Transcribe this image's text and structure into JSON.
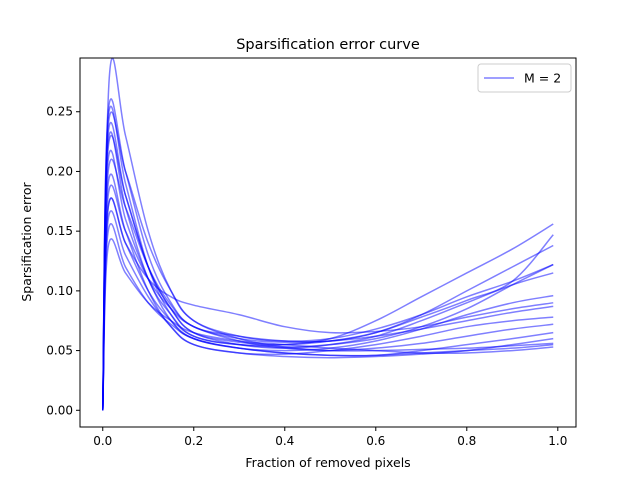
{
  "chart_data": {
    "type": "line",
    "title": "Sparsification error curve",
    "xlabel": "Fraction of removed pixels",
    "ylabel": "Sparsification error",
    "xlim": [
      -0.05,
      1.04
    ],
    "ylim": [
      -0.014,
      0.295
    ],
    "xticks": [
      0.0,
      0.2,
      0.4,
      0.6,
      0.8,
      1.0
    ],
    "xtick_labels": [
      "0.0",
      "0.2",
      "0.4",
      "0.6",
      "0.8",
      "1.0"
    ],
    "yticks": [
      0.0,
      0.05,
      0.1,
      0.15,
      0.2,
      0.25
    ],
    "ytick_labels": [
      "0.00",
      "0.05",
      "0.10",
      "0.15",
      "0.20",
      "0.25"
    ],
    "grid": false,
    "legend": {
      "position": "top-right",
      "entries": [
        "M = 2"
      ]
    },
    "series_color": "#0000ff",
    "series_alpha": 0.5,
    "series": [
      {
        "x": [
          0,
          0.015,
          0.05,
          0.1,
          0.15,
          0.2,
          0.3,
          0.4,
          0.5,
          0.6,
          0.7,
          0.8,
          0.9,
          0.99
        ],
        "y": [
          0,
          0.282,
          0.23,
          0.15,
          0.1,
          0.075,
          0.06,
          0.053,
          0.05,
          0.05,
          0.051,
          0.052,
          0.054,
          0.056
        ]
      },
      {
        "x": [
          0,
          0.012,
          0.05,
          0.1,
          0.15,
          0.2,
          0.3,
          0.4,
          0.5,
          0.6,
          0.7,
          0.8,
          0.9,
          0.99
        ],
        "y": [
          0,
          0.25,
          0.2,
          0.13,
          0.09,
          0.07,
          0.062,
          0.058,
          0.058,
          0.065,
          0.08,
          0.1,
          0.12,
          0.138
        ]
      },
      {
        "x": [
          0,
          0.012,
          0.05,
          0.1,
          0.15,
          0.2,
          0.3,
          0.4,
          0.5,
          0.6,
          0.7,
          0.8,
          0.9,
          0.99
        ],
        "y": [
          0,
          0.245,
          0.19,
          0.12,
          0.08,
          0.062,
          0.055,
          0.055,
          0.06,
          0.075,
          0.095,
          0.115,
          0.135,
          0.156
        ]
      },
      {
        "x": [
          0,
          0.012,
          0.05,
          0.1,
          0.15,
          0.2,
          0.3,
          0.4,
          0.5,
          0.6,
          0.7,
          0.8,
          0.9,
          0.99
        ],
        "y": [
          0,
          0.238,
          0.2,
          0.14,
          0.1,
          0.075,
          0.062,
          0.058,
          0.06,
          0.068,
          0.08,
          0.095,
          0.108,
          0.122
        ]
      },
      {
        "x": [
          0,
          0.012,
          0.05,
          0.1,
          0.15,
          0.2,
          0.3,
          0.4,
          0.5,
          0.6,
          0.7,
          0.8,
          0.9,
          0.99
        ],
        "y": [
          0,
          0.232,
          0.18,
          0.12,
          0.085,
          0.065,
          0.055,
          0.052,
          0.055,
          0.062,
          0.075,
          0.09,
          0.105,
          0.115
        ]
      },
      {
        "x": [
          0,
          0.012,
          0.05,
          0.1,
          0.15,
          0.2,
          0.3,
          0.4,
          0.5,
          0.6,
          0.7,
          0.8,
          0.9,
          0.99
        ],
        "y": [
          0,
          0.225,
          0.17,
          0.11,
          0.08,
          0.062,
          0.055,
          0.053,
          0.055,
          0.06,
          0.07,
          0.085,
          0.105,
          0.122
        ]
      },
      {
        "x": [
          0,
          0.012,
          0.05,
          0.1,
          0.15,
          0.2,
          0.3,
          0.4,
          0.5,
          0.6,
          0.7,
          0.8,
          0.9,
          0.99
        ],
        "y": [
          0,
          0.22,
          0.18,
          0.12,
          0.085,
          0.065,
          0.057,
          0.055,
          0.058,
          0.065,
          0.078,
          0.092,
          0.108,
          0.147
        ]
      },
      {
        "x": [
          0,
          0.012,
          0.05,
          0.1,
          0.15,
          0.2,
          0.3,
          0.4,
          0.5,
          0.6,
          0.7,
          0.8,
          0.9,
          0.99
        ],
        "y": [
          0,
          0.21,
          0.16,
          0.11,
          0.075,
          0.06,
          0.052,
          0.05,
          0.052,
          0.058,
          0.068,
          0.08,
          0.09,
          0.096
        ]
      },
      {
        "x": [
          0,
          0.012,
          0.05,
          0.1,
          0.15,
          0.2,
          0.3,
          0.4,
          0.5,
          0.6,
          0.7,
          0.8,
          0.9,
          0.99
        ],
        "y": [
          0,
          0.2,
          0.17,
          0.12,
          0.088,
          0.07,
          0.06,
          0.057,
          0.058,
          0.062,
          0.068,
          0.075,
          0.082,
          0.087
        ]
      },
      {
        "x": [
          0,
          0.012,
          0.05,
          0.1,
          0.15,
          0.2,
          0.3,
          0.4,
          0.5,
          0.6,
          0.7,
          0.8,
          0.9,
          0.99
        ],
        "y": [
          0,
          0.19,
          0.15,
          0.1,
          0.07,
          0.055,
          0.048,
          0.047,
          0.05,
          0.055,
          0.062,
          0.07,
          0.075,
          0.078
        ]
      },
      {
        "x": [
          0,
          0.012,
          0.05,
          0.1,
          0.15,
          0.2,
          0.3,
          0.4,
          0.5,
          0.6,
          0.7,
          0.8,
          0.9,
          0.99
        ],
        "y": [
          0,
          0.18,
          0.15,
          0.11,
          0.085,
          0.07,
          0.058,
          0.052,
          0.05,
          0.052,
          0.056,
          0.062,
          0.068,
          0.072
        ]
      },
      {
        "x": [
          0,
          0.012,
          0.05,
          0.1,
          0.15,
          0.2,
          0.3,
          0.4,
          0.5,
          0.6,
          0.7,
          0.8,
          0.9,
          0.99
        ],
        "y": [
          0,
          0.17,
          0.14,
          0.1,
          0.075,
          0.06,
          0.052,
          0.048,
          0.046,
          0.046,
          0.05,
          0.055,
          0.06,
          0.065
        ]
      },
      {
        "x": [
          0,
          0.012,
          0.05,
          0.1,
          0.15,
          0.2,
          0.3,
          0.4,
          0.5,
          0.6,
          0.7,
          0.8,
          0.9,
          0.99
        ],
        "y": [
          0,
          0.16,
          0.13,
          0.095,
          0.07,
          0.055,
          0.048,
          0.045,
          0.044,
          0.045,
          0.047,
          0.05,
          0.055,
          0.06
        ]
      },
      {
        "x": [
          0,
          0.012,
          0.05,
          0.1,
          0.15,
          0.2,
          0.3,
          0.4,
          0.5,
          0.6,
          0.7,
          0.8,
          0.9,
          0.99
        ],
        "y": [
          0,
          0.15,
          0.12,
          0.09,
          0.072,
          0.06,
          0.052,
          0.048,
          0.046,
          0.046,
          0.048,
          0.05,
          0.052,
          0.055
        ]
      },
      {
        "x": [
          0,
          0.012,
          0.05,
          0.1,
          0.15,
          0.2,
          0.3,
          0.4,
          0.5,
          0.6,
          0.7,
          0.8,
          0.9,
          0.99
        ],
        "y": [
          0,
          0.137,
          0.115,
          0.09,
          0.075,
          0.065,
          0.058,
          0.055,
          0.052,
          0.05,
          0.048,
          0.048,
          0.05,
          0.053
        ]
      },
      {
        "x": [
          0,
          0.012,
          0.05,
          0.1,
          0.15,
          0.2,
          0.3,
          0.4,
          0.5,
          0.6,
          0.7,
          0.8,
          0.9,
          0.99
        ],
        "y": [
          0,
          0.17,
          0.14,
          0.11,
          0.095,
          0.088,
          0.08,
          0.07,
          0.065,
          0.066,
          0.07,
          0.078,
          0.085,
          0.09
        ]
      }
    ]
  }
}
